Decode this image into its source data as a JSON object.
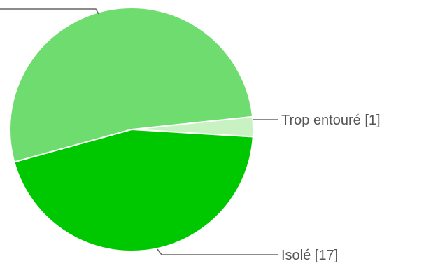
{
  "chart_data": {
    "type": "pie",
    "slices": [
      {
        "label": "Trop entouré [1]",
        "value": 1,
        "color": "#c9f2c2"
      },
      {
        "label": "Isolé [17]",
        "value": 17,
        "color": "#00c800"
      },
      {
        "label": "",
        "value": 20,
        "color": "#6fdc6f"
      }
    ]
  }
}
